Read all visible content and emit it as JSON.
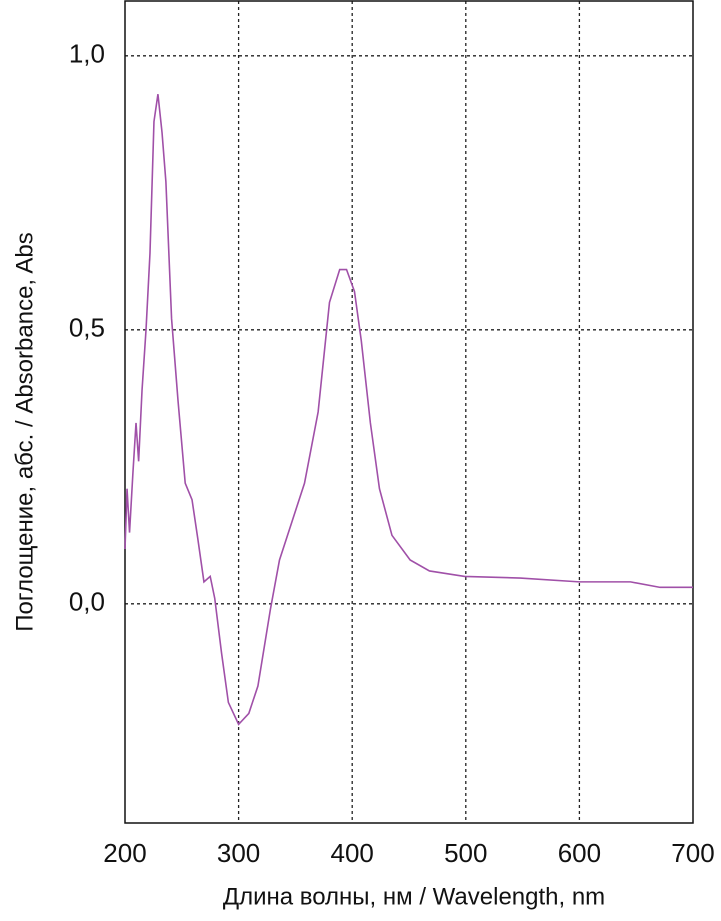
{
  "chart_data": {
    "type": "line",
    "xlabel": "Длина волны, нм / Wavelength, nm",
    "ylabel": "Поглощение, абс. / Absorbance, Abs",
    "xlim": [
      200,
      700
    ],
    "xticks": [
      200,
      300,
      400,
      500,
      600,
      700
    ],
    "ylim": [
      -0.4,
      1.1
    ],
    "yticks": [
      {
        "value": 0,
        "label": "0,0"
      },
      {
        "value": 0.5,
        "label": "0,5"
      },
      {
        "value": 1,
        "label": "1,0"
      }
    ],
    "grid": true,
    "x": [
      200,
      201.8,
      204,
      207,
      209.7,
      212,
      215,
      218.5,
      222,
      225.5,
      229,
      232.6,
      236,
      241,
      246.7,
      253,
      259,
      264,
      269.5,
      275,
      279,
      285,
      291,
      300,
      309,
      317,
      328,
      336,
      347,
      358,
      370,
      380,
      389,
      395,
      402,
      408,
      416,
      424,
      435,
      451,
      468,
      499,
      548,
      600,
      645,
      671,
      700
    ],
    "series": [
      {
        "color": "#a050a8",
        "values": [
          0.1,
          0.21,
          0.13,
          0.24,
          0.33,
          0.26,
          0.39,
          0.5,
          0.64,
          0.88,
          0.93,
          0.86,
          0.77,
          0.52,
          0.37,
          0.22,
          0.19,
          0.12,
          0.04,
          0.05,
          0.01,
          -0.09,
          -0.18,
          -0.22,
          -0.2,
          -0.15,
          -0.01,
          0.08,
          0.15,
          0.22,
          0.35,
          0.55,
          0.61,
          0.61,
          0.57,
          0.48,
          0.33,
          0.21,
          0.125,
          0.08,
          0.06,
          0.05,
          0.047,
          0.04,
          0.04,
          0.03,
          0.03
        ]
      }
    ]
  }
}
